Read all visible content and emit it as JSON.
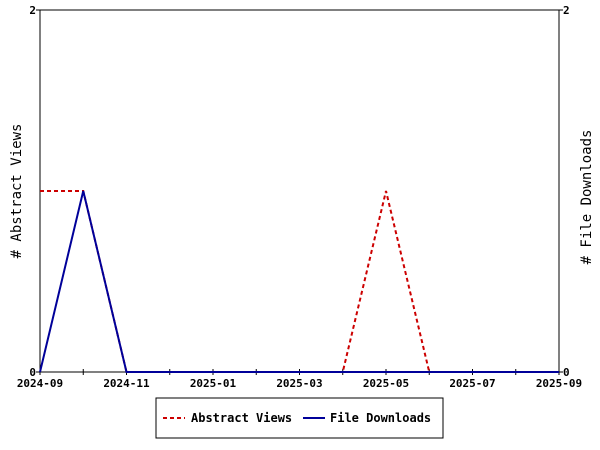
{
  "chart_data": {
    "type": "line",
    "x": [
      "2024-09",
      "2024-10",
      "2024-11",
      "2024-12",
      "2025-01",
      "2025-02",
      "2025-03",
      "2025-04",
      "2025-05",
      "2025-06",
      "2025-07",
      "2025-08",
      "2025-09"
    ],
    "x_tick_labels": [
      "2024-09",
      "2024-11",
      "2025-01",
      "2025-03",
      "2025-05",
      "2025-07",
      "2025-09"
    ],
    "series": [
      {
        "name": "Abstract Views",
        "axis": "left",
        "color": "#cc0000",
        "dash": "dashed",
        "values": [
          1,
          1,
          0,
          0,
          0,
          0,
          0,
          0,
          1,
          0,
          0,
          0,
          0
        ]
      },
      {
        "name": "File Downloads",
        "axis": "right",
        "color": "#000099",
        "dash": "solid",
        "values": [
          0,
          1,
          0,
          0,
          0,
          0,
          0,
          0,
          0,
          0,
          0,
          0,
          0
        ]
      }
    ],
    "ylabel_left": "# Abstract Views",
    "ylabel_right": "# File Downloads",
    "ylim_left": [
      0,
      2
    ],
    "ylim_right": [
      0,
      2
    ],
    "y_ticks_left": [
      "0",
      "2"
    ],
    "y_ticks_right": [
      "0",
      "2"
    ],
    "grid": false,
    "legend_position": "bottom"
  }
}
